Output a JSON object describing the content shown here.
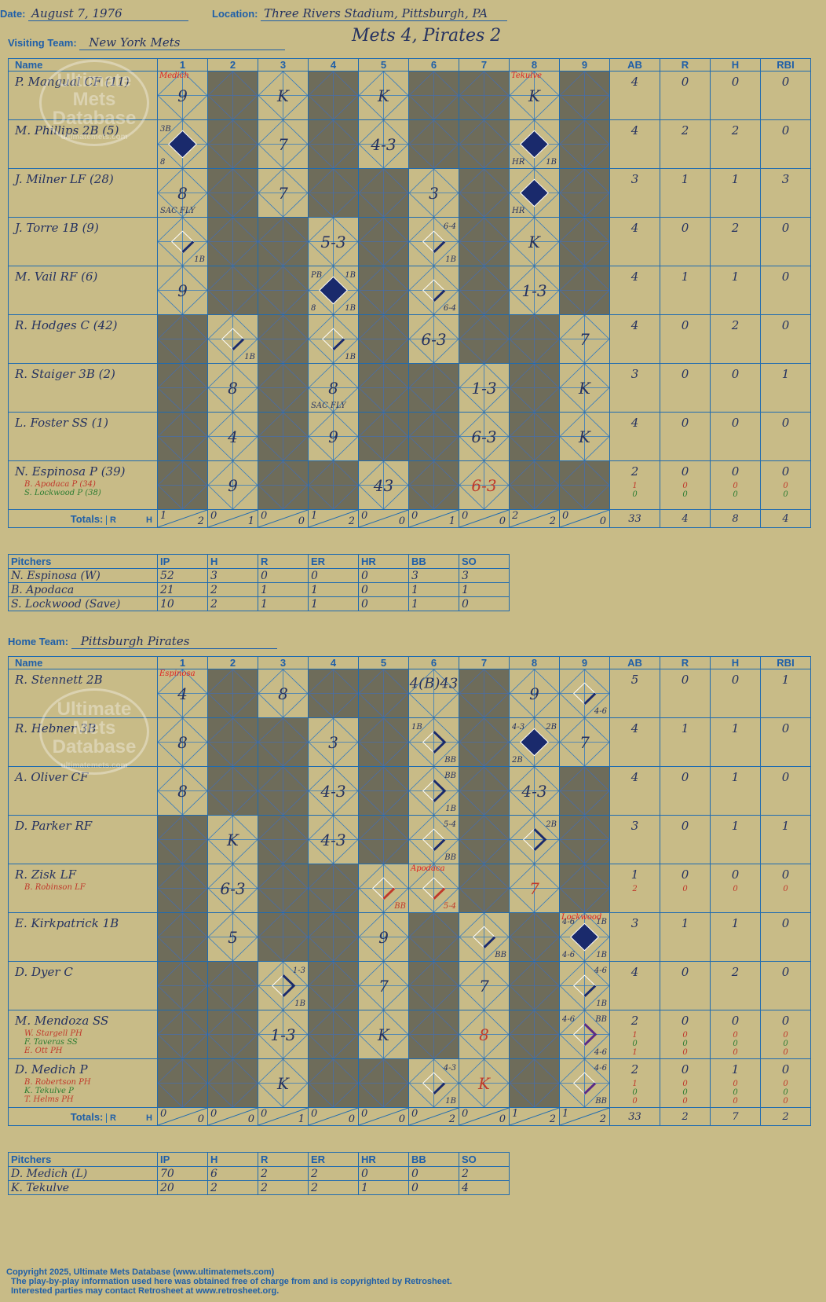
{
  "header": {
    "date_label": "Date:",
    "date": "August 7, 1976",
    "location_label": "Location:",
    "location": "Three Rivers Stadium, Pittsburgh, PA",
    "visiting_label": "Visiting Team:",
    "visiting_team": "New York Mets",
    "result": "Mets 4, Pirates 2",
    "home_label": "Home Team:",
    "home_team": "Pittsburgh Pirates"
  },
  "columns": {
    "name": "Name",
    "innings": [
      "1",
      "2",
      "3",
      "4",
      "5",
      "6",
      "7",
      "8",
      "9"
    ],
    "stats": [
      "AB",
      "R",
      "H",
      "RBI"
    ],
    "totals_label": "Totals:",
    "r_label": "R",
    "h_label": "H"
  },
  "visitors": {
    "rows": [
      {
        "name": "P. Mangual CF (11)",
        "subs": [],
        "stats": [
          "4",
          "0",
          "0",
          "0"
        ],
        "sub_stats": [],
        "cells": [
          {
            "play": "9",
            "note": "Medich"
          },
          "dark",
          {
            "play": "K"
          },
          "dark",
          {
            "play": "K"
          },
          "dark",
          "dark",
          {
            "play": "K",
            "note": "Tekulve"
          },
          "dark"
        ]
      },
      {
        "name": "M. Phillips 2B (5)",
        "subs": [],
        "stats": [
          "4",
          "2",
          "2",
          "0"
        ],
        "sub_stats": [],
        "cells": [
          {
            "play": "",
            "run": true,
            "tl": "3B",
            "bl": "8"
          },
          "dark",
          {
            "play": "7"
          },
          "dark",
          {
            "play": "4-3"
          },
          "dark",
          "dark",
          {
            "play": "",
            "run": true,
            "bl": "HR",
            "br": "1B"
          },
          "dark"
        ]
      },
      {
        "name": "J. Milner LF (28)",
        "subs": [],
        "stats": [
          "3",
          "1",
          "1",
          "3"
        ],
        "sub_stats": [],
        "cells": [
          {
            "play": "8",
            "bl": "SAC FLY"
          },
          "dark",
          {
            "play": "7"
          },
          "dark",
          "dark",
          {
            "play": "3"
          },
          "dark",
          {
            "play": "",
            "run": true,
            "bl": "HR"
          },
          "dark"
        ]
      },
      {
        "name": "J. Torre 1B (9)",
        "subs": [],
        "stats": [
          "4",
          "0",
          "2",
          "0"
        ],
        "sub_stats": [],
        "cells": [
          {
            "play": "",
            "hit": true,
            "br": "1B"
          },
          "dark",
          "dark",
          {
            "play": "5-3"
          },
          "dark",
          {
            "play": "",
            "hit": true,
            "tr": "6-4",
            "br": "1B"
          },
          "dark",
          {
            "play": "K"
          },
          "dark"
        ]
      },
      {
        "name": "M. Vail RF (6)",
        "subs": [],
        "stats": [
          "4",
          "1",
          "1",
          "0"
        ],
        "sub_stats": [],
        "cells": [
          {
            "play": "9"
          },
          "dark",
          "dark",
          {
            "play": "",
            "run": true,
            "tl": "PB",
            "tr": "1B",
            "bl": "8",
            "br": "1B"
          },
          "dark",
          {
            "play": "",
            "hit": true,
            "br": "6-4"
          },
          "dark",
          {
            "play": "1-3"
          },
          "dark"
        ]
      },
      {
        "name": "R. Hodges C (42)",
        "subs": [],
        "stats": [
          "4",
          "0",
          "2",
          "0"
        ],
        "sub_stats": [],
        "cells": [
          "dark",
          {
            "play": "",
            "hit": true,
            "br": "1B"
          },
          "dark",
          {
            "play": "",
            "hit": true,
            "br": "1B"
          },
          "dark",
          {
            "play": "6-3"
          },
          "dark",
          "dark",
          {
            "play": "7"
          }
        ]
      },
      {
        "name": "R. Staiger 3B (2)",
        "subs": [],
        "stats": [
          "3",
          "0",
          "0",
          "1"
        ],
        "sub_stats": [],
        "cells": [
          "dark",
          {
            "play": "8"
          },
          "dark",
          {
            "play": "8",
            "bl": "SAC FLY"
          },
          "dark",
          "dark",
          {
            "play": "1-3"
          },
          "dark",
          {
            "play": "K"
          }
        ]
      },
      {
        "name": "L. Foster SS (1)",
        "subs": [],
        "stats": [
          "4",
          "0",
          "0",
          "0"
        ],
        "sub_stats": [],
        "cells": [
          "dark",
          {
            "play": "4"
          },
          "dark",
          {
            "play": "9"
          },
          "dark",
          "dark",
          {
            "play": "6-3"
          },
          "dark",
          {
            "play": "K"
          }
        ]
      },
      {
        "name": "N. Espinosa P (39)",
        "subs": [
          "B. Apodaca P (34)",
          "S. Lockwood P (38)"
        ],
        "stats": [
          "2",
          "0",
          "0",
          "0"
        ],
        "sub_stats": [
          [
            "1",
            "0",
            "0",
            "0"
          ],
          [
            "0",
            "0",
            "0",
            "0"
          ]
        ],
        "cells": [
          "dark",
          {
            "play": "9"
          },
          "dark",
          "dark",
          {
            "play": "43"
          },
          "dark",
          {
            "play": "6-3",
            "red": true
          },
          "dark",
          "dark"
        ]
      }
    ],
    "totals": [
      [
        "1",
        "2"
      ],
      [
        "0",
        "1"
      ],
      [
        "0",
        "0"
      ],
      [
        "1",
        "2"
      ],
      [
        "0",
        "0"
      ],
      [
        "0",
        "1"
      ],
      [
        "0",
        "0"
      ],
      [
        "2",
        "2"
      ],
      [
        "0",
        "0"
      ]
    ],
    "stat_totals": [
      "33",
      "4",
      "8",
      "4"
    ]
  },
  "visitor_pitchers": {
    "headers": [
      "Pitchers",
      "IP",
      "H",
      "R",
      "ER",
      "HR",
      "BB",
      "SO"
    ],
    "rows": [
      [
        "N. Espinosa (W)",
        "52",
        "3",
        "0",
        "0",
        "0",
        "3",
        "3"
      ],
      [
        "B. Apodaca",
        "21",
        "2",
        "1",
        "1",
        "0",
        "1",
        "1"
      ],
      [
        "S. Lockwood (Save)",
        "10",
        "2",
        "1",
        "1",
        "0",
        "1",
        "0"
      ]
    ]
  },
  "home": {
    "rows": [
      {
        "name": "R. Stennett 2B",
        "subs": [],
        "stats": [
          "5",
          "0",
          "0",
          "1"
        ],
        "sub_stats": [],
        "cells": [
          {
            "play": "4",
            "note": "Espinosa"
          },
          "dark",
          {
            "play": "8"
          },
          "dark",
          "dark",
          {
            "play": "4(B)43",
            "top": true
          },
          "dark",
          {
            "play": "9"
          },
          {
            "play": "",
            "hit": true,
            "br": "4-6"
          }
        ]
      },
      {
        "name": "R. Hebner 3B",
        "subs": [],
        "stats": [
          "4",
          "1",
          "1",
          "0"
        ],
        "sub_stats": [],
        "cells": [
          {
            "play": "8"
          },
          "dark",
          "dark",
          {
            "play": "3"
          },
          "dark",
          {
            "play": "",
            "walk": true,
            "tl": "1B",
            "br": "BB"
          },
          "dark",
          {
            "play": "",
            "run": true,
            "tl": "4-3",
            "tr": "2B",
            "bl": "2B"
          },
          {
            "play": "7"
          }
        ]
      },
      {
        "name": "A. Oliver CF",
        "subs": [],
        "stats": [
          "4",
          "0",
          "1",
          "0"
        ],
        "sub_stats": [],
        "cells": [
          {
            "play": "8"
          },
          "dark",
          "dark",
          {
            "play": "4-3"
          },
          "dark",
          {
            "play": "",
            "walk": true,
            "tr": "BB",
            "br": "1B"
          },
          "dark",
          {
            "play": "4-3"
          },
          "dark"
        ]
      },
      {
        "name": "D. Parker RF",
        "subs": [],
        "stats": [
          "3",
          "0",
          "1",
          "1"
        ],
        "sub_stats": [],
        "cells": [
          "dark",
          {
            "play": "K"
          },
          "dark",
          {
            "play": "4-3"
          },
          "dark",
          {
            "play": "",
            "hit": true,
            "tr": "5-4",
            "br": "BB"
          },
          "dark",
          {
            "play": "",
            "walk": true,
            "tr": "2B"
          },
          "dark"
        ]
      },
      {
        "name": "R. Zisk LF",
        "subs": [
          "B. Robinson LF"
        ],
        "stats": [
          "1",
          "0",
          "0",
          "0"
        ],
        "sub_stats": [
          [
            "2",
            "0",
            "0",
            "0"
          ]
        ],
        "cells": [
          "dark",
          {
            "play": "6-3"
          },
          "dark",
          "dark",
          {
            "play": "",
            "hitred": true,
            "br": "BB"
          },
          {
            "play": "",
            "hitred": true,
            "br": "5-4",
            "note": "Apodaca"
          },
          "dark",
          {
            "play": "7",
            "red": true
          },
          "dark"
        ]
      },
      {
        "name": "E. Kirkpatrick 1B",
        "subs": [],
        "stats": [
          "3",
          "1",
          "1",
          "0"
        ],
        "sub_stats": [],
        "cells": [
          "dark",
          {
            "play": "5"
          },
          "dark",
          "dark",
          {
            "play": "9"
          },
          "dark",
          {
            "play": "",
            "hit": true,
            "br": "BB"
          },
          "dark",
          {
            "play": "",
            "run": true,
            "tl": "4-6",
            "tr": "1B",
            "bl": "4-6",
            "br": "1B",
            "note": "Lockwood"
          }
        ]
      },
      {
        "name": "D. Dyer C",
        "subs": [],
        "stats": [
          "4",
          "0",
          "2",
          "0"
        ],
        "sub_stats": [],
        "cells": [
          "dark",
          "dark",
          {
            "play": "",
            "walk": true,
            "tr": "1-3",
            "br": "1B"
          },
          "dark",
          {
            "play": "7"
          },
          "dark",
          {
            "play": "7"
          },
          "dark",
          {
            "play": "",
            "hit": true,
            "tr": "4-6",
            "br": "1B"
          }
        ]
      },
      {
        "name": "M. Mendoza SS",
        "subs": [
          "W. Stargell PH",
          "F. Taveras SS",
          "E. Ott PH"
        ],
        "stats": [
          "2",
          "0",
          "0",
          "0"
        ],
        "sub_stats": [
          [
            "1",
            "0",
            "0",
            "0"
          ],
          [
            "0",
            "0",
            "0",
            "0"
          ],
          [
            "1",
            "0",
            "0",
            "0"
          ]
        ],
        "cells": [
          "dark",
          "dark",
          {
            "play": "1-3"
          },
          "dark",
          {
            "play": "K"
          },
          "dark",
          {
            "play": "8",
            "red": true
          },
          "dark",
          {
            "play": "",
            "walkpurple": true,
            "tl": "4-6",
            "tr": "BB",
            "br": "4-6"
          }
        ]
      },
      {
        "name": "D. Medich P",
        "subs": [
          "B. Robertson PH",
          "K. Tekulve P",
          "T. Helms PH"
        ],
        "stats": [
          "2",
          "0",
          "1",
          "0"
        ],
        "sub_stats": [
          [
            "1",
            "0",
            "0",
            "0"
          ],
          [
            "0",
            "0",
            "0",
            "0"
          ],
          [
            "0",
            "0",
            "0",
            "0"
          ]
        ],
        "cells": [
          "dark",
          "dark",
          {
            "play": "K"
          },
          "dark",
          "dark",
          {
            "play": "",
            "hit": true,
            "tr": "4-3",
            "br": "1B"
          },
          {
            "play": "K",
            "red": true
          },
          "dark",
          {
            "play": "",
            "hitpurple": true,
            "tr": "4-6",
            "br": "BB"
          }
        ]
      }
    ],
    "totals": [
      [
        "0",
        "0"
      ],
      [
        "0",
        "0"
      ],
      [
        "0",
        "1"
      ],
      [
        "0",
        "0"
      ],
      [
        "0",
        "0"
      ],
      [
        "0",
        "2"
      ],
      [
        "0",
        "0"
      ],
      [
        "1",
        "2"
      ],
      [
        "1",
        "2"
      ]
    ],
    "stat_totals": [
      "33",
      "2",
      "7",
      "2"
    ]
  },
  "home_pitchers": {
    "headers": [
      "Pitchers",
      "IP",
      "H",
      "R",
      "ER",
      "HR",
      "BB",
      "SO"
    ],
    "rows": [
      [
        "D. Medich (L)",
        "70",
        "6",
        "2",
        "2",
        "0",
        "0",
        "2"
      ],
      [
        "K. Tekulve",
        "20",
        "2",
        "2",
        "2",
        "1",
        "0",
        "4"
      ]
    ]
  },
  "watermark": {
    "line1": "Ultimate",
    "line2": "Mets",
    "line3": "Database",
    "line4": "ultimatemets.com"
  },
  "footer": {
    "line1": "Copyright 2025, Ultimate Mets Database (www.ultimatemets.com)",
    "line2": "The play-by-play information used here was obtained free of charge from and is copyrighted by Retrosheet.",
    "line3": "Interested parties may contact Retrosheet at www.retrosheet.org."
  },
  "colors": {
    "background": "#c8bb87",
    "grid": "#1f6bb0",
    "dark_cell": "#6e6c5a",
    "ink": "#253260",
    "red_ink": "#c0392b",
    "run_diamond": "#1a2a6c",
    "purple_ink": "#5b2a86"
  }
}
